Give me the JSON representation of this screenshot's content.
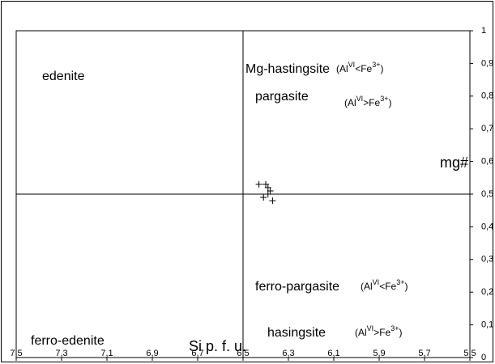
{
  "chart_data": {
    "type": "scatter",
    "x_label": "Si p. f. u.",
    "y_label": "mg#",
    "x": [
      6.43,
      6.4,
      6.39,
      6.38,
      6.41,
      6.39,
      6.37
    ],
    "values": [
      0.53,
      0.53,
      0.52,
      0.51,
      0.49,
      0.5,
      0.48
    ],
    "color": "#000000",
    "xlim": [
      7.5,
      5.5
    ],
    "ylim": [
      0,
      1
    ],
    "xticks": [
      {
        "value": 7.5,
        "label": "7,5"
      },
      {
        "value": 7.3,
        "label": "7,3"
      },
      {
        "value": 7.1,
        "label": "7,1"
      },
      {
        "value": 6.9,
        "label": "6,9"
      },
      {
        "value": 6.7,
        "label": "6,7"
      },
      {
        "value": 6.5,
        "label": "6,5"
      },
      {
        "value": 6.3,
        "label": "6,3"
      },
      {
        "value": 6.1,
        "label": "6,1"
      },
      {
        "value": 5.9,
        "label": "5,9"
      },
      {
        "value": 5.7,
        "label": "5,7"
      },
      {
        "value": 5.5,
        "label": "5,5"
      }
    ],
    "yticks": [
      0,
      {
        "value": 0.1,
        "label": "0,1"
      },
      {
        "value": 0.2,
        "label": "0,2"
      },
      {
        "value": 0.3,
        "label": "0,3"
      },
      {
        "value": 0.4,
        "label": "0,4"
      },
      {
        "value": 0.5,
        "label": "0,5"
      },
      {
        "value": 0.6,
        "label": "0,6"
      },
      {
        "value": 0.7,
        "label": "0,7"
      },
      {
        "value": 0.8,
        "label": "0,8"
      },
      {
        "value": 0.9,
        "label": "0,9"
      },
      1
    ],
    "x_divider": 6.5,
    "y_divider": 0.5,
    "annotations": [
      {
        "name": "edenite"
      },
      {
        "name": "Mg-hastingsite",
        "condition": [
          "(Al",
          "VI",
          "<Fe",
          "3+",
          ")"
        ]
      },
      {
        "name": "pargasite",
        "condition": [
          "(Al",
          "VI",
          ">Fe",
          "3+",
          ")"
        ]
      },
      {
        "name": "ferro-pargasite",
        "condition": [
          "(Al",
          "VI",
          "<Fe",
          "3+",
          ")"
        ]
      },
      {
        "name": "ferro-edenite"
      },
      {
        "name": "hasingsite",
        "condition": [
          "(Al",
          "VI",
          ">Fe",
          "3+",
          ")"
        ]
      }
    ]
  }
}
